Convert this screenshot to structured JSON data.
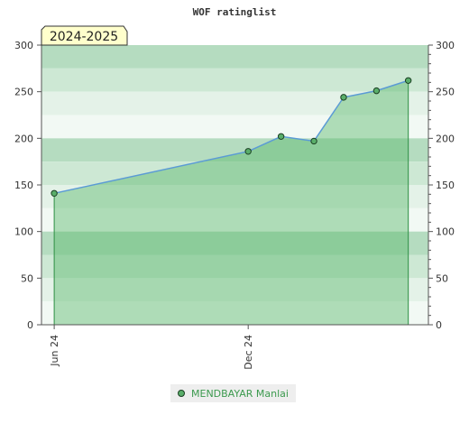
{
  "chart_data": {
    "type": "area",
    "title": "WOF ratinglist",
    "season_badge": "2024-2025",
    "ylim": [
      0,
      300
    ],
    "y_ticks": [
      0,
      50,
      100,
      150,
      200,
      250,
      300
    ],
    "y_axis_sides": [
      "left",
      "right"
    ],
    "x_ticks": [
      {
        "label": "Jun 24",
        "date": "2024-06-01"
      },
      {
        "label": "Dec 24",
        "date": "2024-12-01"
      }
    ],
    "xlim": [
      "2024-05-20",
      "2025-05-20"
    ],
    "grid": "alternating horizontal bands",
    "legend_position": "bottom-center",
    "series": [
      {
        "name": "MENDBAYAR Manlai",
        "x": [
          "2024-06-01",
          "2024-12-01",
          "2025-01-01",
          "2025-02-01",
          "2025-03-01",
          "2025-04-01",
          "2025-05-01"
        ],
        "y": [
          141,
          186,
          202,
          197,
          244,
          251,
          262
        ]
      }
    ],
    "colors": {
      "line": "#5b9bd5",
      "fill": "#5cb86c",
      "marker": "#5aae6a",
      "band_dark": "#b5dcc0",
      "band_mid": "#cde8d4",
      "band_light": "#e4f2e8",
      "badge_bg": "#ffffcc"
    }
  }
}
